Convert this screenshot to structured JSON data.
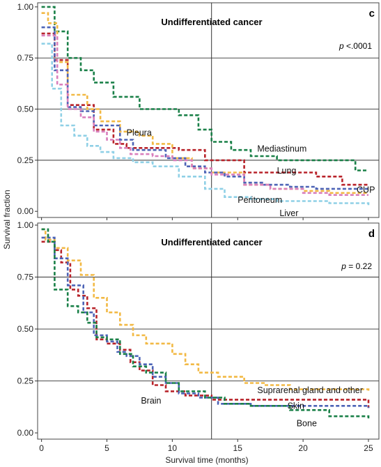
{
  "y_axis_label": "Survival fraction",
  "x_axis_label": "Survival time (months)",
  "colors": {
    "green": "#1a8048",
    "red": "#b8232a",
    "orange": "#f2b944",
    "blue": "#4c63b6",
    "pink": "#d97fbd",
    "lightblue": "#8fd0e6"
  },
  "chart_data": [
    {
      "type": "line",
      "panel": "c",
      "title": "Undifferentiated cancer",
      "p_prefix": "p",
      "p_value": "<.0001",
      "xlabel": "Survival time (months)",
      "ylabel": "Survival fraction",
      "xlim": [
        0,
        25
      ],
      "ylim": [
        0,
        1
      ],
      "xticks": [
        0,
        5,
        10,
        15,
        20,
        25
      ],
      "yticks": [
        "0.00",
        "0.25",
        "0.50",
        "0.75",
        "1.00"
      ],
      "reference_line_x": 13,
      "series": [
        {
          "name": "Mediastinum",
          "color": "green",
          "label_pos": [
            16.5,
            0.305
          ],
          "points": [
            [
              0,
              1.0
            ],
            [
              1.0,
              0.88
            ],
            [
              2.0,
              0.75
            ],
            [
              3.0,
              0.69
            ],
            [
              4.0,
              0.63
            ],
            [
              5.5,
              0.56
            ],
            [
              7.5,
              0.5
            ],
            [
              9.0,
              0.5
            ],
            [
              10.5,
              0.47
            ],
            [
              12.0,
              0.4
            ],
            [
              13.0,
              0.34
            ],
            [
              14.5,
              0.3
            ],
            [
              16.0,
              0.27
            ],
            [
              18.0,
              0.25
            ],
            [
              24.0,
              0.2
            ],
            [
              25.0,
              0.2
            ]
          ]
        },
        {
          "name": "Lung",
          "color": "red",
          "label_pos": [
            18.0,
            0.198
          ],
          "points": [
            [
              0,
              0.87
            ],
            [
              1.0,
              0.74
            ],
            [
              2.0,
              0.52
            ],
            [
              4.0,
              0.4
            ],
            [
              5.5,
              0.33
            ],
            [
              6.5,
              0.31
            ],
            [
              8.0,
              0.31
            ],
            [
              10.5,
              0.3
            ],
            [
              12.5,
              0.25
            ],
            [
              15.5,
              0.19
            ],
            [
              17.0,
              0.19
            ],
            [
              19.0,
              0.19
            ],
            [
              21.0,
              0.17
            ],
            [
              23.0,
              0.13
            ],
            [
              25.0,
              0.13
            ]
          ]
        },
        {
          "name": "Pleura",
          "color": "orange",
          "label_pos": [
            6.5,
            0.385
          ],
          "points": [
            [
              0,
              0.97
            ],
            [
              0.5,
              0.92
            ],
            [
              1.2,
              0.73
            ],
            [
              2.0,
              0.57
            ],
            [
              3.5,
              0.5
            ],
            [
              4.5,
              0.44
            ],
            [
              6.0,
              0.39
            ],
            [
              7.5,
              0.37
            ],
            [
              8.5,
              0.33
            ],
            [
              10.0,
              0.26
            ],
            [
              11.5,
              0.21
            ],
            [
              13.0,
              0.19
            ],
            [
              15.5,
              0.13
            ],
            [
              17.5,
              0.11
            ],
            [
              20.0,
              0.1
            ],
            [
              22.0,
              0.09
            ],
            [
              25.0,
              0.09
            ]
          ]
        },
        {
          "name": "CUP",
          "color": "blue",
          "label_pos": [
            24.8,
            0.105
          ],
          "points": [
            [
              0,
              0.9
            ],
            [
              1.0,
              0.69
            ],
            [
              2.0,
              0.51
            ],
            [
              3.0,
              0.49
            ],
            [
              4.0,
              0.42
            ],
            [
              6.0,
              0.35
            ],
            [
              7.0,
              0.3
            ],
            [
              9.5,
              0.26
            ],
            [
              11.0,
              0.22
            ],
            [
              12.5,
              0.19
            ],
            [
              14.0,
              0.17
            ],
            [
              15.5,
              0.14
            ],
            [
              17.0,
              0.13
            ],
            [
              19.0,
              0.12
            ],
            [
              21.0,
              0.11
            ],
            [
              25.0,
              0.11
            ]
          ]
        },
        {
          "name": "Peritoneum",
          "color": "pink",
          "label_pos": [
            15.0,
            0.055
          ],
          "points": [
            [
              0,
              0.86
            ],
            [
              1.2,
              0.62
            ],
            [
              2.0,
              0.5
            ],
            [
              3.0,
              0.46
            ],
            [
              4.0,
              0.39
            ],
            [
              5.0,
              0.35
            ],
            [
              6.0,
              0.31
            ],
            [
              6.8,
              0.28
            ],
            [
              8.5,
              0.27
            ],
            [
              10.0,
              0.25
            ],
            [
              11.5,
              0.21
            ],
            [
              13.0,
              0.18
            ],
            [
              15.5,
              0.13
            ],
            [
              17.5,
              0.11
            ],
            [
              20.0,
              0.09
            ],
            [
              22.0,
              0.08
            ],
            [
              25.0,
              0.08
            ]
          ]
        },
        {
          "name": "Liver",
          "color": "lightblue",
          "label_pos": [
            18.2,
            -0.01
          ],
          "points": [
            [
              0,
              0.82
            ],
            [
              0.8,
              0.6
            ],
            [
              1.5,
              0.42
            ],
            [
              2.5,
              0.37
            ],
            [
              3.5,
              0.32
            ],
            [
              4.5,
              0.29
            ],
            [
              5.5,
              0.26
            ],
            [
              7.0,
              0.24
            ],
            [
              8.5,
              0.22
            ],
            [
              10.5,
              0.17
            ],
            [
              12.5,
              0.11
            ],
            [
              14.0,
              0.07
            ],
            [
              16.0,
              0.06
            ],
            [
              18.0,
              0.05
            ],
            [
              20.0,
              0.05
            ],
            [
              22.0,
              0.04
            ],
            [
              25.0,
              0.03
            ]
          ]
        }
      ]
    },
    {
      "type": "line",
      "panel": "d",
      "title": "Undifferentiated cancer",
      "p_prefix": "p",
      "p_value": "= 0.22",
      "xlabel": "Survival time (months)",
      "ylabel": "Survival fraction",
      "xlim": [
        0,
        25
      ],
      "ylim": [
        0,
        1
      ],
      "xticks": [
        0,
        5,
        10,
        15,
        20,
        25
      ],
      "yticks": [
        "0.00",
        "0.25",
        "0.50",
        "0.75",
        "1.00"
      ],
      "reference_line_x": 13,
      "series": [
        {
          "name": "Suprarenal gland and other",
          "color": "orange",
          "label_pos": [
            16.5,
            0.205
          ],
          "points": [
            [
              0,
              0.98
            ],
            [
              0.3,
              0.93
            ],
            [
              1.0,
              0.89
            ],
            [
              2.0,
              0.83
            ],
            [
              3.0,
              0.76
            ],
            [
              4.0,
              0.65
            ],
            [
              5.0,
              0.58
            ],
            [
              6.0,
              0.52
            ],
            [
              7.0,
              0.47
            ],
            [
              8.0,
              0.43
            ],
            [
              10.0,
              0.38
            ],
            [
              11.0,
              0.33
            ],
            [
              12.0,
              0.29
            ],
            [
              13.5,
              0.27
            ],
            [
              15.5,
              0.24
            ],
            [
              17.0,
              0.23
            ],
            [
              19.0,
              0.21
            ],
            [
              25.0,
              0.2
            ]
          ]
        },
        {
          "name": "Brain",
          "color": "red",
          "label_pos": [
            7.6,
            0.155
          ],
          "points": [
            [
              0,
              0.92
            ],
            [
              1.0,
              0.88
            ],
            [
              1.5,
              0.82
            ],
            [
              2.2,
              0.69
            ],
            [
              2.8,
              0.66
            ],
            [
              3.5,
              0.6
            ],
            [
              4.2,
              0.45
            ],
            [
              5.0,
              0.43
            ],
            [
              6.0,
              0.4
            ],
            [
              6.8,
              0.34
            ],
            [
              7.5,
              0.3
            ],
            [
              8.5,
              0.23
            ],
            [
              9.5,
              0.2
            ],
            [
              11.0,
              0.18
            ],
            [
              13.0,
              0.16
            ],
            [
              25.0,
              0.12
            ]
          ]
        },
        {
          "name": "Skin",
          "color": "blue",
          "label_pos": [
            18.8,
            0.13
          ],
          "points": [
            [
              0,
              0.94
            ],
            [
              1.0,
              0.84
            ],
            [
              2.0,
              0.71
            ],
            [
              3.2,
              0.58
            ],
            [
              4.0,
              0.47
            ],
            [
              5.0,
              0.44
            ],
            [
              5.8,
              0.39
            ],
            [
              6.5,
              0.37
            ],
            [
              7.5,
              0.33
            ],
            [
              8.5,
              0.27
            ],
            [
              9.5,
              0.24
            ],
            [
              10.5,
              0.19
            ],
            [
              12.0,
              0.17
            ],
            [
              13.5,
              0.14
            ],
            [
              16.0,
              0.13
            ],
            [
              18.0,
              0.13
            ],
            [
              25.0,
              0.12
            ]
          ]
        },
        {
          "name": "Bone",
          "color": "green",
          "label_pos": [
            19.5,
            0.045
          ],
          "points": [
            [
              0,
              0.98
            ],
            [
              0.5,
              0.92
            ],
            [
              1.0,
              0.69
            ],
            [
              2.0,
              0.61
            ],
            [
              2.8,
              0.58
            ],
            [
              3.5,
              0.53
            ],
            [
              4.2,
              0.46
            ],
            [
              5.0,
              0.45
            ],
            [
              6.0,
              0.38
            ],
            [
              7.0,
              0.32
            ],
            [
              8.0,
              0.29
            ],
            [
              9.5,
              0.24
            ],
            [
              10.5,
              0.2
            ],
            [
              12.5,
              0.17
            ],
            [
              14.0,
              0.14
            ],
            [
              16.0,
              0.13
            ],
            [
              19.0,
              0.11
            ],
            [
              22.0,
              0.08
            ],
            [
              25.0,
              0.07
            ]
          ]
        }
      ]
    }
  ]
}
